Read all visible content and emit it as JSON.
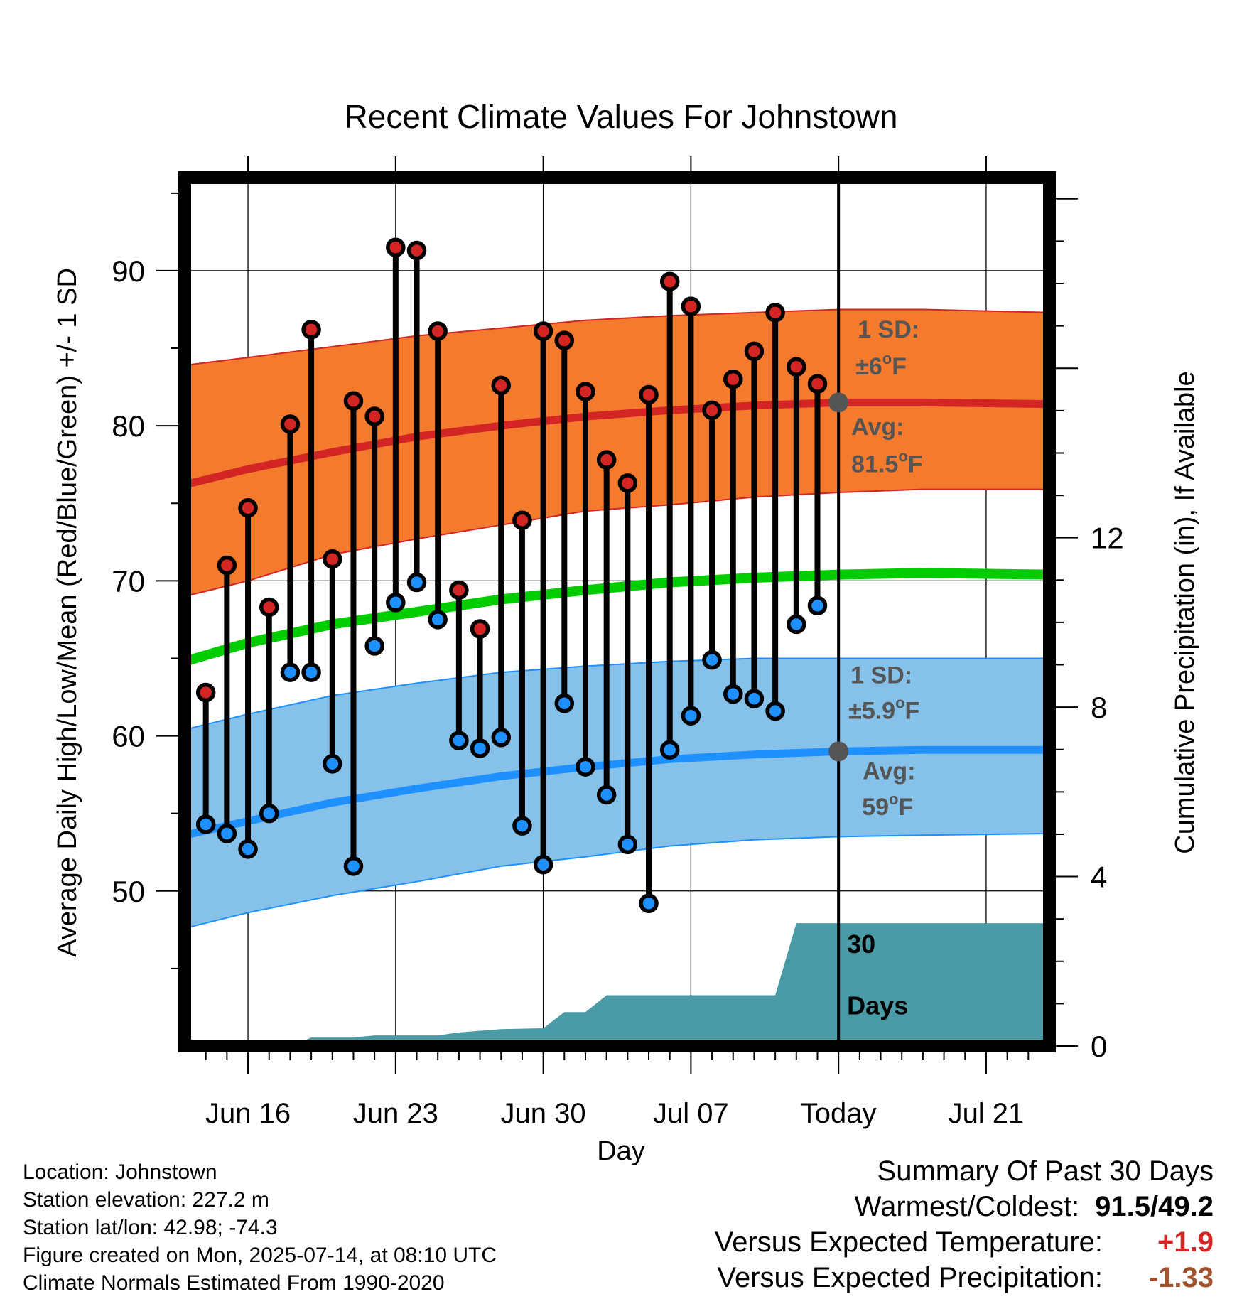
{
  "chart_data": {
    "type": "line",
    "title": "Recent Climate Values For Johnstown",
    "xlabel": "Day",
    "ylabel": "Average Daily High/Low/Mean (Red/Blue/Green) +/- 1 SD",
    "y2label": "Cumulative Precipitation (in), If Available",
    "ylim": [
      40,
      96
    ],
    "y2lim": [
      0,
      20.5
    ],
    "yticks": [
      50,
      60,
      70,
      80,
      90
    ],
    "y2ticks": [
      0,
      4,
      8,
      12
    ],
    "x_start": "Jun 13",
    "x_end": "Jul 24",
    "x_tick_labels": [
      {
        "date": "Jun 16",
        "label": "Jun 16"
      },
      {
        "date": "Jun 23",
        "label": "Jun 23"
      },
      {
        "date": "Jun 30",
        "label": "Jun 30"
      },
      {
        "date": "Jul 07",
        "label": "Jul 07"
      },
      {
        "date": "Jul 14",
        "label": "Today"
      },
      {
        "date": "Jul 21",
        "label": "Jul 21"
      }
    ],
    "grid": true,
    "colors": {
      "high": "#d42525",
      "low": "#1e90ff",
      "high_band": "#f47a2e",
      "low_band": "#85c1e9",
      "mean": "#00cc00",
      "precip": "#4a9ba6",
      "expected_marker": "#555555"
    },
    "daily": [
      {
        "date": "Jun 14",
        "high": 62.8,
        "low": 54.3
      },
      {
        "date": "Jun 15",
        "high": 71.0,
        "low": 53.7
      },
      {
        "date": "Jun 16",
        "high": 74.7,
        "low": 52.7
      },
      {
        "date": "Jun 17",
        "high": 68.3,
        "low": 55.0
      },
      {
        "date": "Jun 18",
        "high": 80.1,
        "low": 64.1
      },
      {
        "date": "Jun 19",
        "high": 86.2,
        "low": 64.1
      },
      {
        "date": "Jun 20",
        "high": 71.4,
        "low": 58.2
      },
      {
        "date": "Jun 21",
        "high": 81.6,
        "low": 51.6
      },
      {
        "date": "Jun 22",
        "high": 80.6,
        "low": 65.8
      },
      {
        "date": "Jun 23",
        "high": 91.5,
        "low": 68.6
      },
      {
        "date": "Jun 24",
        "high": 91.3,
        "low": 69.9
      },
      {
        "date": "Jun 25",
        "high": 86.1,
        "low": 67.5
      },
      {
        "date": "Jun 26",
        "high": 69.4,
        "low": 59.7
      },
      {
        "date": "Jun 27",
        "high": 66.9,
        "low": 59.2
      },
      {
        "date": "Jun 28",
        "high": 82.6,
        "low": 59.9
      },
      {
        "date": "Jun 29",
        "high": 73.9,
        "low": 54.2
      },
      {
        "date": "Jun 30",
        "high": 86.1,
        "low": 51.7
      },
      {
        "date": "Jul 01",
        "high": 85.5,
        "low": 62.1
      },
      {
        "date": "Jul 02",
        "high": 82.2,
        "low": 58.0
      },
      {
        "date": "Jul 03",
        "high": 77.8,
        "low": 56.2
      },
      {
        "date": "Jul 04",
        "high": 76.3,
        "low": 53.0
      },
      {
        "date": "Jul 05",
        "high": 82.0,
        "low": 49.2
      },
      {
        "date": "Jul 06",
        "high": 89.3,
        "low": 59.1
      },
      {
        "date": "Jul 07",
        "high": 87.7,
        "low": 61.3
      },
      {
        "date": "Jul 08",
        "high": 81.0,
        "low": 64.9
      },
      {
        "date": "Jul 09",
        "high": 83.0,
        "low": 62.7
      },
      {
        "date": "Jul 10",
        "high": 84.8,
        "low": 62.4
      },
      {
        "date": "Jul 11",
        "high": 87.3,
        "low": 61.6
      },
      {
        "date": "Jul 12",
        "high": 83.8,
        "low": 67.2
      },
      {
        "date": "Jul 13",
        "high": 82.7,
        "low": 68.4
      }
    ],
    "normals": {
      "dates": [
        "Jun 13",
        "Jun 16",
        "Jun 20",
        "Jun 24",
        "Jun 28",
        "Jul 02",
        "Jul 06",
        "Jul 10",
        "Jul 14",
        "Jul 18",
        "Jul 24"
      ],
      "high_avg": [
        76.2,
        77.2,
        78.3,
        79.3,
        80.0,
        80.6,
        81.0,
        81.3,
        81.5,
        81.5,
        81.4
      ],
      "high_upper": [
        83.9,
        84.4,
        85.1,
        85.8,
        86.3,
        86.8,
        87.1,
        87.3,
        87.5,
        87.5,
        87.3
      ],
      "high_lower": [
        69.0,
        70.0,
        71.7,
        72.7,
        73.6,
        74.5,
        74.9,
        75.4,
        75.7,
        75.9,
        75.9
      ],
      "mean": [
        64.8,
        66.0,
        67.2,
        68.0,
        68.8,
        69.4,
        69.9,
        70.2,
        70.4,
        70.5,
        70.4
      ],
      "low_avg": [
        53.6,
        54.5,
        55.7,
        56.6,
        57.4,
        58.0,
        58.5,
        58.8,
        59.0,
        59.1,
        59.1
      ],
      "low_upper": [
        60.4,
        61.4,
        62.6,
        63.4,
        64.1,
        64.5,
        64.8,
        65.0,
        65.0,
        65.0,
        65.0
      ],
      "low_lower": [
        47.6,
        48.6,
        49.7,
        50.6,
        51.6,
        52.2,
        52.9,
        53.3,
        53.5,
        53.6,
        53.7
      ]
    },
    "precip_cumulative": [
      {
        "date": "Jun 13",
        "value": 0
      },
      {
        "date": "Jun 18",
        "value": 0
      },
      {
        "date": "Jun 19",
        "value": 0.2
      },
      {
        "date": "Jun 21",
        "value": 0.2
      },
      {
        "date": "Jun 22",
        "value": 0.25
      },
      {
        "date": "Jun 25",
        "value": 0.25
      },
      {
        "date": "Jun 26",
        "value": 0.32
      },
      {
        "date": "Jun 28",
        "value": 0.4
      },
      {
        "date": "Jun 30",
        "value": 0.42
      },
      {
        "date": "Jul 01",
        "value": 0.8
      },
      {
        "date": "Jul 02",
        "value": 0.8
      },
      {
        "date": "Jul 03",
        "value": 1.2
      },
      {
        "date": "Jul 11",
        "value": 1.2
      },
      {
        "date": "Jul 12",
        "value": 2.9
      },
      {
        "date": "Jul 24",
        "value": 2.9
      }
    ],
    "expected_markers": [
      {
        "date": "Jul 14",
        "value": 81.5
      },
      {
        "date": "Jul 14",
        "value": 59.0
      }
    ],
    "annotations": {
      "high_sd_line1": "1 SD:",
      "high_sd_pm": "±",
      "high_sd_value": "6",
      "high_sd_unit": "F",
      "high_avg_line1": "Avg:",
      "high_avg_value": "81.5",
      "high_avg_unit": "F",
      "low_sd_line1": "1 SD:",
      "low_sd_pm": "±",
      "low_sd_value": "5.9",
      "low_sd_unit": "F",
      "low_avg_line1": "Avg:",
      "low_avg_value": "59",
      "low_avg_unit": "F",
      "degree": "o",
      "days_line1": "30",
      "days_line2": "Days"
    }
  },
  "footer": {
    "location": "Location: Johnstown",
    "elevation": "Station elevation: 227.2 m",
    "latlon": "Station lat/lon: 42.98; -74.3",
    "created": "Figure created on Mon, 2025-07-14, at 08:10 UTC",
    "normals": "Climate Normals Estimated From 1990-2020"
  },
  "summary": {
    "title": "Summary Of Past 30 Days",
    "warmest_label": "Warmest/Coldest:",
    "warmest_value": "91.5/49.2",
    "temp_label": "Versus Expected Temperature:",
    "temp_value": "+1.9",
    "temp_color": "#d42525",
    "precip_label": "Versus Expected Precipitation:",
    "precip_value": "-1.33",
    "precip_color": "#a0522d"
  }
}
